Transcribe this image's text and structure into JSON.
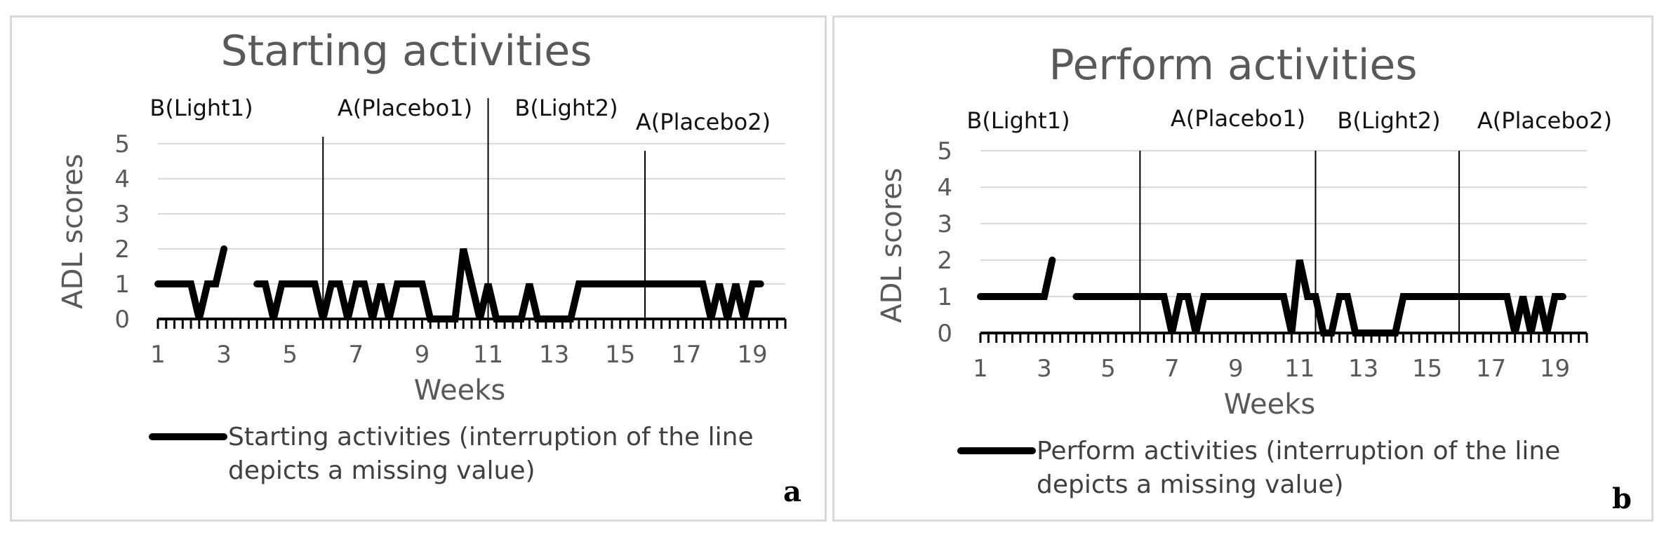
{
  "chart_data": [
    {
      "type": "line",
      "panel_label": "a",
      "title": "Starting activities",
      "xlabel": "Weeks",
      "ylabel": "ADL scores",
      "ylim": [
        0,
        5
      ],
      "yticks": [
        "0",
        "1",
        "2",
        "3",
        "4",
        "5"
      ],
      "xtick_labels": [
        "1",
        "3",
        "5",
        "7",
        "9",
        "11",
        "13",
        "15",
        "17",
        "19"
      ],
      "grid": true,
      "legend_position": "bottom",
      "phases": [
        {
          "label": "B(Light1)",
          "end_x": 6
        },
        {
          "label": "A(Placebo1)",
          "end_x": 11
        },
        {
          "label": "B(Light2)",
          "end_x": 15.75
        },
        {
          "label": "A(Placebo2)",
          "end_x": null
        }
      ],
      "series": [
        {
          "name": "Starting activities (interruption of the line depicts a missing value)",
          "x": [
            1,
            1.25,
            1.5,
            1.75,
            2,
            2.25,
            2.5,
            2.75,
            3,
            3.25,
            3.5,
            3.75,
            4,
            4.25,
            4.5,
            4.75,
            5,
            5.25,
            5.5,
            5.75,
            6,
            6.25,
            6.5,
            6.75,
            7,
            7.25,
            7.5,
            7.75,
            8,
            8.25,
            8.5,
            8.75,
            9,
            9.25,
            9.5,
            9.75,
            10,
            10.25,
            10.5,
            10.75,
            11,
            11.25,
            11.5,
            11.75,
            12,
            12.25,
            12.5,
            12.75,
            13,
            13.25,
            13.5,
            13.75,
            14,
            14.25,
            14.5,
            14.75,
            15,
            15.25,
            15.5,
            15.75,
            16,
            16.25,
            16.5,
            16.75,
            17,
            17.25,
            17.5,
            17.75,
            18,
            18.25,
            18.5,
            18.75,
            19,
            19.25,
            19.5,
            19.75
          ],
          "y": [
            1,
            1,
            1,
            1,
            1,
            0,
            1,
            1,
            2,
            null,
            null,
            null,
            1,
            1,
            0,
            1,
            1,
            1,
            1,
            1,
            0,
            1,
            1,
            0,
            1,
            1,
            0,
            1,
            0,
            1,
            1,
            1,
            1,
            0,
            0,
            0,
            0,
            2,
            1,
            0,
            1,
            0,
            0,
            0,
            0,
            1,
            0,
            0,
            0,
            0,
            0,
            1,
            1,
            1,
            1,
            1,
            1,
            1,
            1,
            1,
            1,
            1,
            1,
            1,
            1,
            1,
            1,
            0,
            1,
            0,
            1,
            0,
            1,
            1,
            null,
            null
          ]
        }
      ]
    },
    {
      "type": "line",
      "panel_label": "b",
      "title": "Perform activities",
      "xlabel": "Weeks",
      "ylabel": "ADL scores",
      "ylim": [
        0,
        5
      ],
      "yticks": [
        "0",
        "1",
        "2",
        "3",
        "4",
        "5"
      ],
      "xtick_labels": [
        "1",
        "3",
        "5",
        "7",
        "9",
        "11",
        "13",
        "15",
        "17",
        "19"
      ],
      "grid": true,
      "legend_position": "bottom",
      "phases": [
        {
          "label": "B(Light1)",
          "end_x": 6
        },
        {
          "label": "A(Placebo1)",
          "end_x": 11.5
        },
        {
          "label": "B(Light2)",
          "end_x": 16
        },
        {
          "label": "A(Placebo2)",
          "end_x": null
        }
      ],
      "series": [
        {
          "name": "Perform activities (interruption of the line depicts a missing value)",
          "x": [
            1,
            1.25,
            1.5,
            1.75,
            2,
            2.25,
            2.5,
            2.75,
            3,
            3.25,
            3.5,
            3.75,
            4,
            4.25,
            4.5,
            4.75,
            5,
            5.25,
            5.5,
            5.75,
            6,
            6.25,
            6.5,
            6.75,
            7,
            7.25,
            7.5,
            7.75,
            8,
            8.25,
            8.5,
            8.75,
            9,
            9.25,
            9.5,
            9.75,
            10,
            10.25,
            10.5,
            10.75,
            11,
            11.25,
            11.5,
            11.75,
            12,
            12.25,
            12.5,
            12.75,
            13,
            13.25,
            13.5,
            13.75,
            14,
            14.25,
            14.5,
            14.75,
            15,
            15.25,
            15.5,
            15.75,
            16,
            16.25,
            16.5,
            16.75,
            17,
            17.25,
            17.5,
            17.75,
            18,
            18.25,
            18.5,
            18.75,
            19,
            19.25,
            19.5,
            19.75
          ],
          "y": [
            1,
            1,
            1,
            1,
            1,
            1,
            1,
            1,
            1,
            2,
            null,
            null,
            1,
            1,
            1,
            1,
            1,
            1,
            1,
            1,
            1,
            1,
            1,
            1,
            0,
            1,
            1,
            0,
            1,
            1,
            1,
            1,
            1,
            1,
            1,
            1,
            1,
            1,
            1,
            0,
            2,
            1,
            1,
            0,
            0,
            1,
            1,
            0,
            0,
            0,
            0,
            0,
            0,
            1,
            1,
            1,
            1,
            1,
            1,
            1,
            1,
            1,
            1,
            1,
            1,
            1,
            1,
            0,
            1,
            0,
            1,
            0,
            1,
            1,
            null,
            null
          ]
        }
      ]
    }
  ]
}
